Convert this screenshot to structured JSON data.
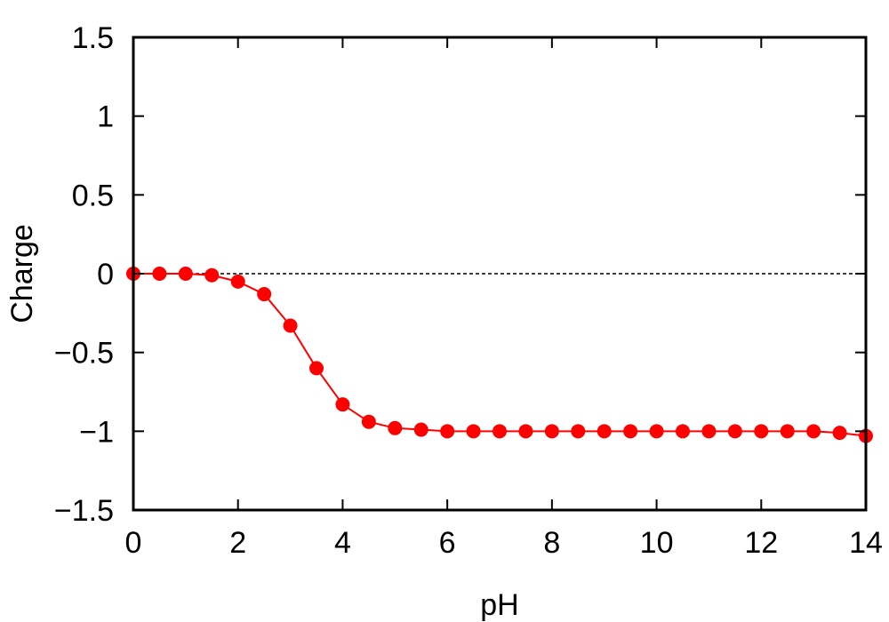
{
  "chart_data": {
    "type": "line",
    "title": "",
    "xlabel": "pH",
    "ylabel": "Charge",
    "xlim": [
      0,
      14
    ],
    "ylim": [
      -1.5,
      1.5
    ],
    "x_ticks": [
      0,
      2,
      4,
      6,
      8,
      10,
      12,
      14
    ],
    "x_tick_labels": [
      "0",
      "2",
      "4",
      "6",
      "8",
      "10",
      "12",
      "14"
    ],
    "y_ticks": [
      1.5,
      1,
      0.5,
      0,
      -0.5,
      -1,
      -1.5
    ],
    "y_tick_labels": [
      "1.5",
      "1",
      "0.5",
      "0",
      "−0.5",
      "−1",
      "−1.5"
    ],
    "grid": false,
    "reference_line": {
      "y": 0,
      "style": "dashed",
      "color": "#000000"
    },
    "series": [
      {
        "color": "#ff0000",
        "marker": "circle",
        "x": [
          0,
          0.5,
          1,
          1.5,
          2,
          2.5,
          3,
          3.5,
          4,
          4.5,
          5,
          5.5,
          6,
          6.5,
          7,
          7.5,
          8,
          8.5,
          9,
          9.5,
          10,
          10.5,
          11,
          11.5,
          12,
          12.5,
          13,
          13.5,
          14
        ],
        "y": [
          0,
          0,
          0,
          -0.01,
          -0.05,
          -0.13,
          -0.33,
          -0.6,
          -0.83,
          -0.94,
          -0.98,
          -0.99,
          -1.0,
          -1.0,
          -1.0,
          -1.0,
          -1.0,
          -1.0,
          -1.0,
          -1.0,
          -1.0,
          -1.0,
          -1.0,
          -1.0,
          -1.0,
          -1.0,
          -1.0,
          -1.01,
          -1.03
        ]
      }
    ]
  }
}
